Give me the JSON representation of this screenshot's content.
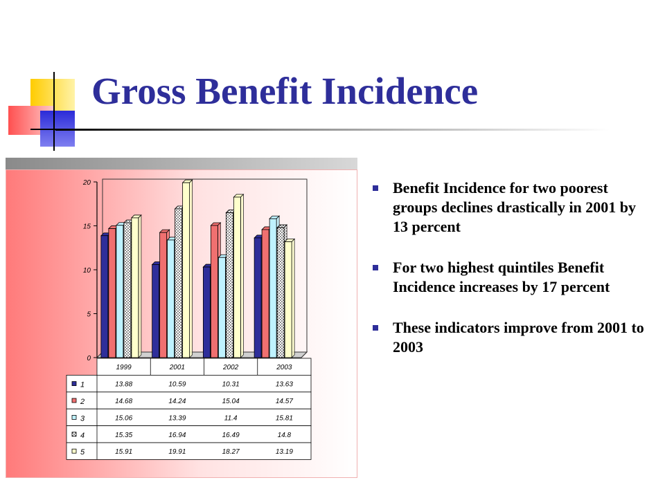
{
  "slide": {
    "title": "Gross Benefit Incidence",
    "bullets": [
      "Benefit Incidence for two poorest groups declines drastically in 2001 by 13 percent",
      "For two highest quintiles Benefit Incidence increases by 17 percent",
      "These indicators improve from 2001 to 2003"
    ],
    "colors": {
      "title": "#2e2e9a",
      "bullet": "#2e2e9a"
    }
  },
  "chart_data": {
    "type": "bar",
    "categories": [
      "1999",
      "2001",
      "2002",
      "2003"
    ],
    "ylim": [
      0,
      20
    ],
    "yticks": [
      0,
      5,
      10,
      15,
      20
    ],
    "grid": false,
    "legend": "data-table-left",
    "series": [
      {
        "name": "1",
        "values": [
          13.88,
          10.59,
          10.31,
          13.63
        ],
        "color": "#2e2e9a",
        "pattern": "solid"
      },
      {
        "name": "2",
        "values": [
          14.68,
          14.24,
          15.04,
          14.57
        ],
        "color": "#f07070",
        "pattern": "solid"
      },
      {
        "name": "3",
        "values": [
          15.06,
          13.39,
          11.4,
          15.81
        ],
        "color": "#bff2ff",
        "pattern": "solid"
      },
      {
        "name": "4",
        "values": [
          15.35,
          16.94,
          16.49,
          14.8
        ],
        "color": "#ffffff",
        "pattern": "dots"
      },
      {
        "name": "5",
        "values": [
          15.91,
          19.91,
          18.27,
          13.19
        ],
        "color": "#ffffcc",
        "pattern": "solid"
      }
    ],
    "table_values": [
      [
        "13.88",
        "10.59",
        "10.31",
        "13.63"
      ],
      [
        "14.68",
        "14.24",
        "15.04",
        "14.57"
      ],
      [
        "15.06",
        "13.39",
        "11.4",
        "15.81"
      ],
      [
        "15.35",
        "16.94",
        "16.49",
        "14.8"
      ],
      [
        "15.91",
        "19.91",
        "18.27",
        "13.19"
      ]
    ]
  }
}
